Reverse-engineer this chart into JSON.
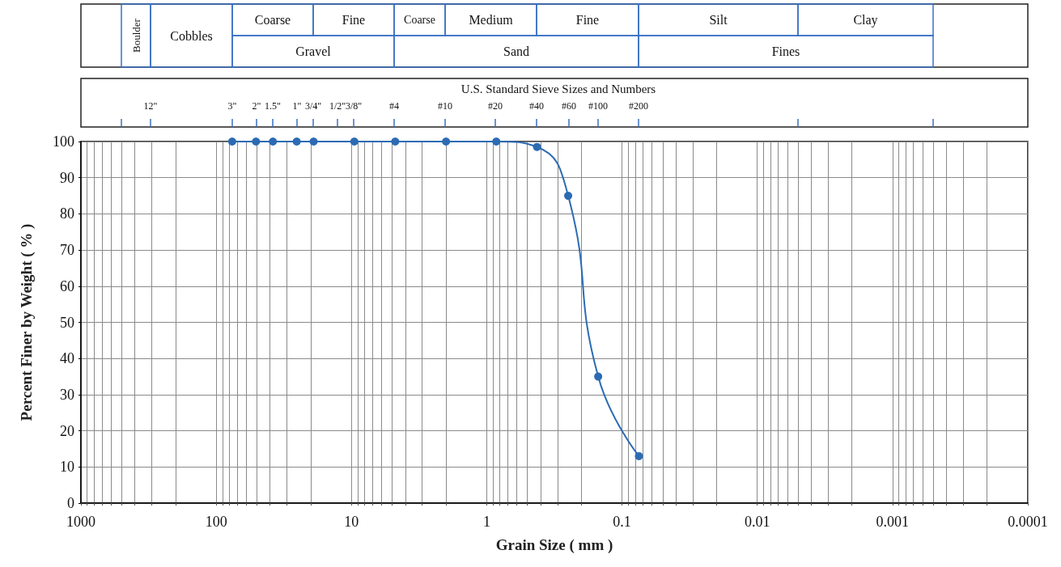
{
  "chart_data": {
    "type": "line",
    "xlabel": "Grain Size ( mm )",
    "ylabel": "Percent Finer by Weight ( % )",
    "annotations": [
      "Boulder",
      "Cobbles",
      "Coarse",
      "Fine",
      "Coarse",
      "Medium",
      "Fine",
      "Silt",
      "Clay",
      "Gravel",
      "Sand",
      "Fines",
      "U.S. Standard Sieve Sizes and Numbers",
      "12\"",
      "3\"",
      "2\"",
      "1.5\"",
      "1\"",
      "3/4\"",
      "1/2\"",
      "3/8\"",
      "#4",
      "#10",
      "#20",
      "#40",
      "#60",
      "#100",
      "#200"
    ],
    "log": "x",
    "x": [
      76.2,
      50.8,
      38.1,
      25.4,
      19.05,
      9.525,
      4.75,
      2.0,
      0.85,
      0.425,
      0.25,
      0.15,
      0.075
    ],
    "series": [
      {
        "color": "#2c6bb3",
        "values": [
          100,
          100,
          100,
          100,
          100,
          100,
          100,
          100,
          100,
          98.5,
          85,
          35,
          13
        ]
      }
    ],
    "marker": "circle",
    "line_style": "solid",
    "grid": true,
    "xlim": [
      1000,
      0.0001
    ],
    "ylim": [
      0,
      100
    ],
    "yticks": [
      0,
      10,
      20,
      30,
      40,
      50,
      60,
      70,
      80,
      90,
      100
    ],
    "xticks": [
      1000,
      {
        "value": 900,
        "label": null
      },
      {
        "value": 800,
        "label": null
      },
      {
        "value": 700,
        "label": null
      },
      {
        "value": 600,
        "label": null
      },
      {
        "value": 500,
        "label": null
      },
      {
        "value": 400,
        "label": null
      },
      {
        "value": 300,
        "label": null
      },
      {
        "value": 200,
        "label": null
      },
      100,
      {
        "value": 90,
        "label": null
      },
      {
        "value": 80,
        "label": null
      },
      {
        "value": 70,
        "label": null
      },
      {
        "value": 60,
        "label": null
      },
      {
        "value": 50,
        "label": null
      },
      {
        "value": 40,
        "label": null
      },
      {
        "value": 30,
        "label": null
      },
      {
        "value": 20,
        "label": null
      },
      10,
      {
        "value": 9,
        "label": null
      },
      {
        "value": 8,
        "label": null
      },
      {
        "value": 7,
        "label": null
      },
      {
        "value": 6,
        "label": null
      },
      {
        "value": 5,
        "label": null
      },
      {
        "value": 4,
        "label": null
      },
      {
        "value": 3,
        "label": null
      },
      {
        "value": 2,
        "label": null
      },
      1,
      {
        "value": 0.9,
        "label": null
      },
      {
        "value": 0.8,
        "label": null
      },
      {
        "value": 0.7,
        "label": null
      },
      {
        "value": 0.6,
        "label": null
      },
      {
        "value": 0.5,
        "label": null
      },
      {
        "value": 0.4,
        "label": null
      },
      {
        "value": 0.3,
        "label": null
      },
      {
        "value": 0.2,
        "label": null
      },
      0.1,
      {
        "value": 0.09,
        "label": null
      },
      {
        "value": 0.08,
        "label": null
      },
      {
        "value": 0.07,
        "label": null
      },
      {
        "value": 0.06,
        "label": null
      },
      {
        "value": 0.05,
        "label": null
      },
      {
        "value": 0.04,
        "label": null
      },
      {
        "value": 0.03,
        "label": null
      },
      {
        "value": 0.02,
        "label": null
      },
      0.01,
      {
        "value": 0.009,
        "label": null
      },
      {
        "value": 0.008,
        "label": null
      },
      {
        "value": 0.007,
        "label": null
      },
      {
        "value": 0.006,
        "label": null
      },
      {
        "value": 0.005,
        "label": null
      },
      {
        "value": 0.004,
        "label": null
      },
      {
        "value": 0.003,
        "label": null
      },
      {
        "value": 0.002,
        "label": null
      },
      0.001,
      {
        "value": 0.0009,
        "label": null
      },
      {
        "value": 0.0008,
        "label": null
      },
      {
        "value": 0.0007,
        "label": null
      },
      {
        "value": 0.0006,
        "label": null
      },
      {
        "value": 0.0005,
        "label": null
      },
      {
        "value": 0.0004,
        "label": null
      },
      {
        "value": 0.0003,
        "label": null
      },
      {
        "value": 0.0002,
        "label": null
      },
      0.0001
    ]
  }
}
